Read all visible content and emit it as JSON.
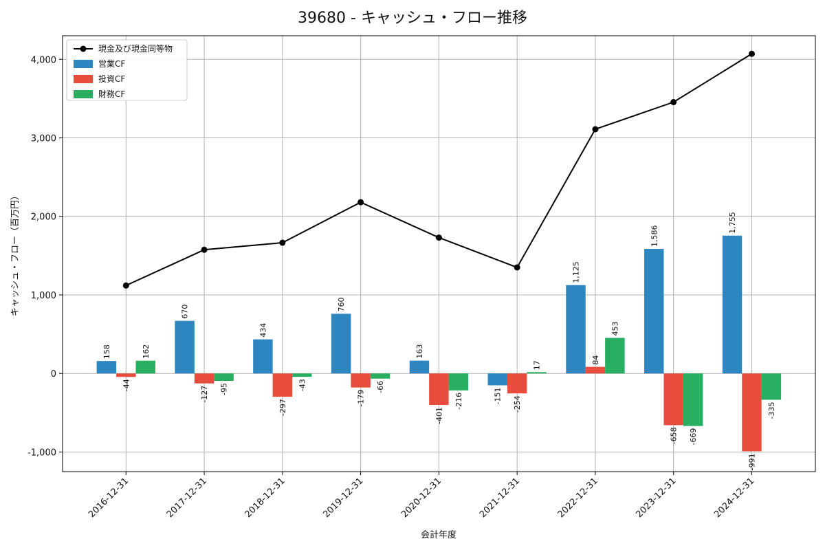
{
  "chart_data": {
    "type": "bar",
    "title": "39680 - キャッシュ・フロー推移",
    "xlabel": "会計年度",
    "ylabel": "キャッシュ・フロー（百万円）",
    "ylim": [
      -1250,
      4300
    ],
    "yticks": [
      -1000,
      0,
      1000,
      2000,
      3000,
      4000
    ],
    "ytick_labels": [
      "-1,000",
      "0",
      "1,000",
      "2,000",
      "3,000",
      "4,000"
    ],
    "grid": true,
    "legend_position": "top-left",
    "categories": [
      "2016-12-31",
      "2017-12-31",
      "2018-12-31",
      "2019-12-31",
      "2020-12-31",
      "2021-12-31",
      "2022-12-31",
      "2023-12-31",
      "2024-12-31"
    ],
    "series": [
      {
        "name": "営業CF",
        "kind": "bar",
        "color": "#2e86c1",
        "values": [
          158,
          670,
          434,
          760,
          163,
          -151,
          1125,
          1586,
          1755
        ],
        "labels": [
          "158",
          "670",
          "434",
          "760",
          "163",
          "-151",
          "1,125",
          "1,586",
          "1,755"
        ]
      },
      {
        "name": "投資CF",
        "kind": "bar",
        "color": "#e74c3c",
        "values": [
          -44,
          -127,
          -297,
          -179,
          -401,
          -254,
          84,
          -658,
          -991
        ],
        "labels": [
          "-44",
          "-127",
          "-297",
          "-179",
          "-401",
          "-254",
          "84",
          "-658",
          "-991"
        ]
      },
      {
        "name": "財務CF",
        "kind": "bar",
        "color": "#27ae60",
        "values": [
          162,
          -95,
          -43,
          -66,
          -216,
          17,
          453,
          -669,
          -335
        ],
        "labels": [
          "162",
          "-95",
          "-43",
          "-66",
          "-216",
          "17",
          "453",
          "-669",
          "-335"
        ]
      }
    ],
    "line": {
      "name": "現金及び現金同等物",
      "color": "#000000",
      "values": [
        1120,
        1575,
        1665,
        2180,
        1730,
        1350,
        3110,
        3455,
        4070
      ]
    }
  }
}
